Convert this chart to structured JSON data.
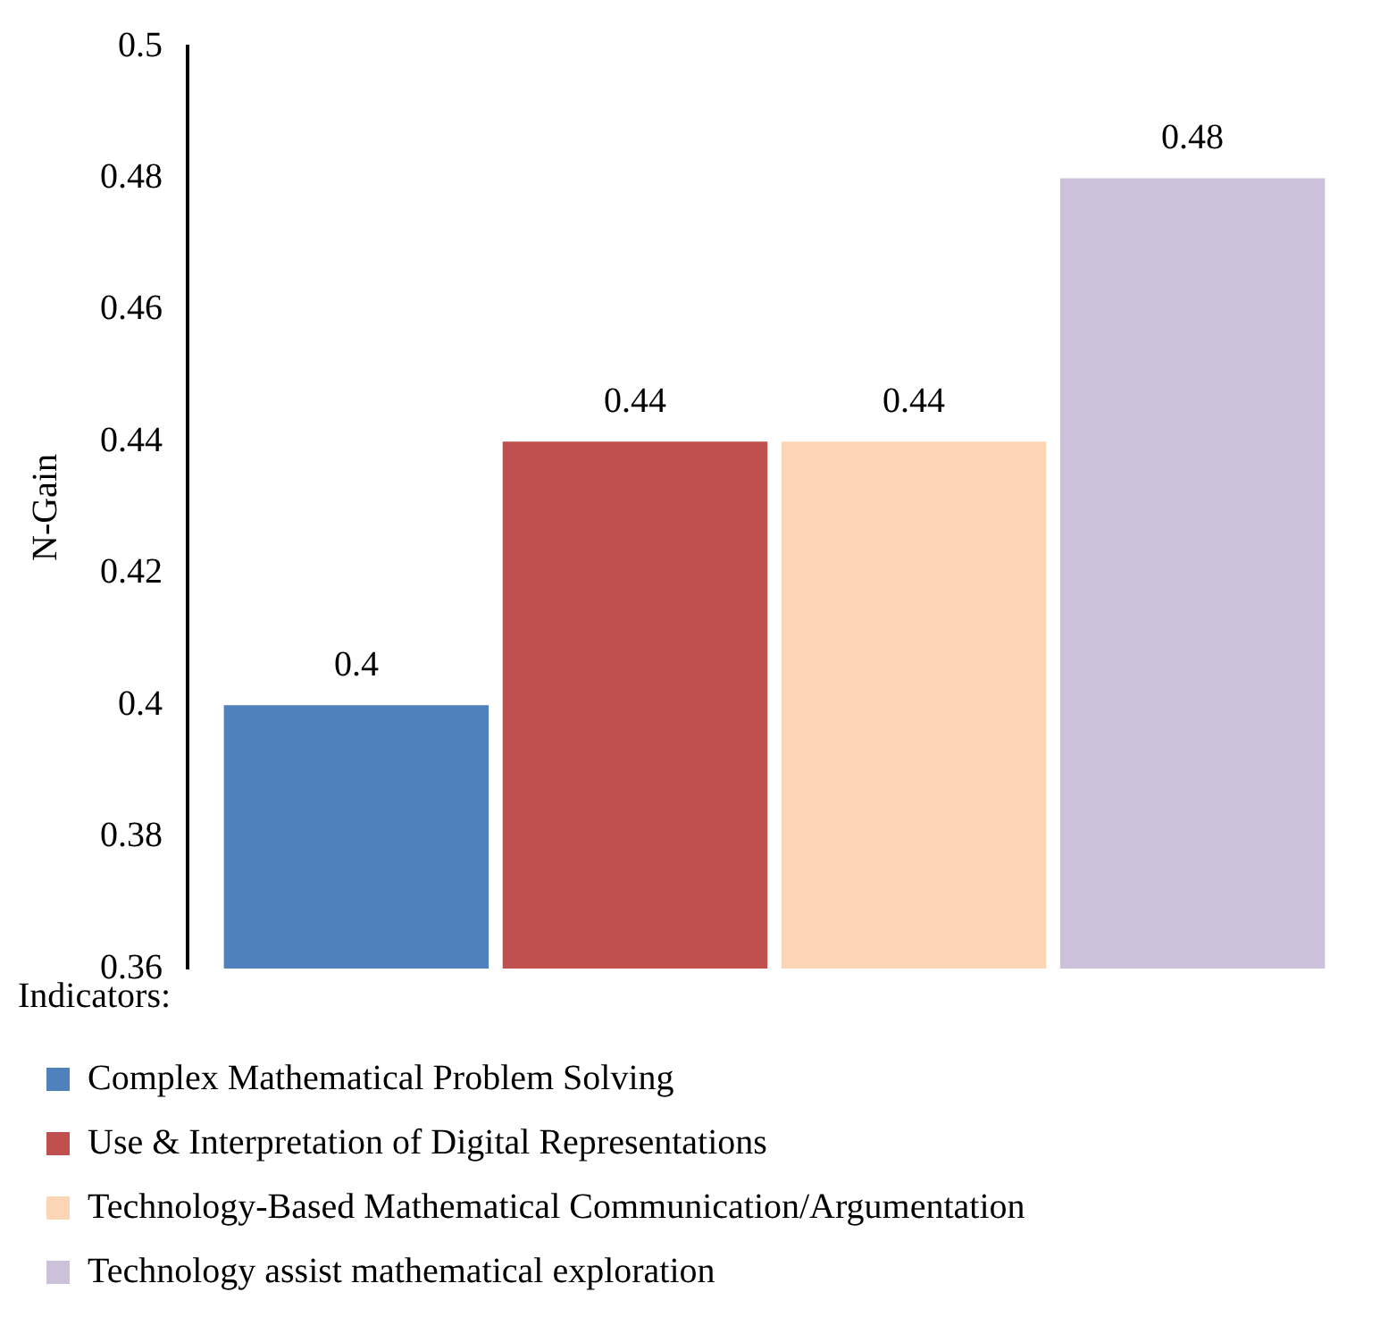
{
  "chart_data": {
    "type": "bar",
    "ylabel": "N-Gain",
    "legend_title": "Indicators:",
    "categories": [
      null
    ],
    "series": [
      {
        "name": "Complex Mathematical Problem Solving",
        "color": "#4f81bd",
        "values": [
          0.4
        ]
      },
      {
        "name": "Use & Interpretation of Digital Representations",
        "color": "#c0504d",
        "values": [
          0.44
        ]
      },
      {
        "name": "Technology-Based Mathematical Communication/Argumentation",
        "color": "#fcd5b5",
        "values": [
          0.44
        ]
      },
      {
        "name": "Technology assist mathematical exploration",
        "color": "#ccc1da",
        "values": [
          0.48
        ]
      }
    ],
    "ylim": [
      0.36,
      0.5
    ],
    "yticks": [
      0.36,
      0.38,
      0.4,
      0.42,
      0.44,
      0.46,
      0.48,
      0.5
    ],
    "grid": false,
    "legend": "bottom",
    "data_labels": true,
    "tick_labels": "y"
  }
}
